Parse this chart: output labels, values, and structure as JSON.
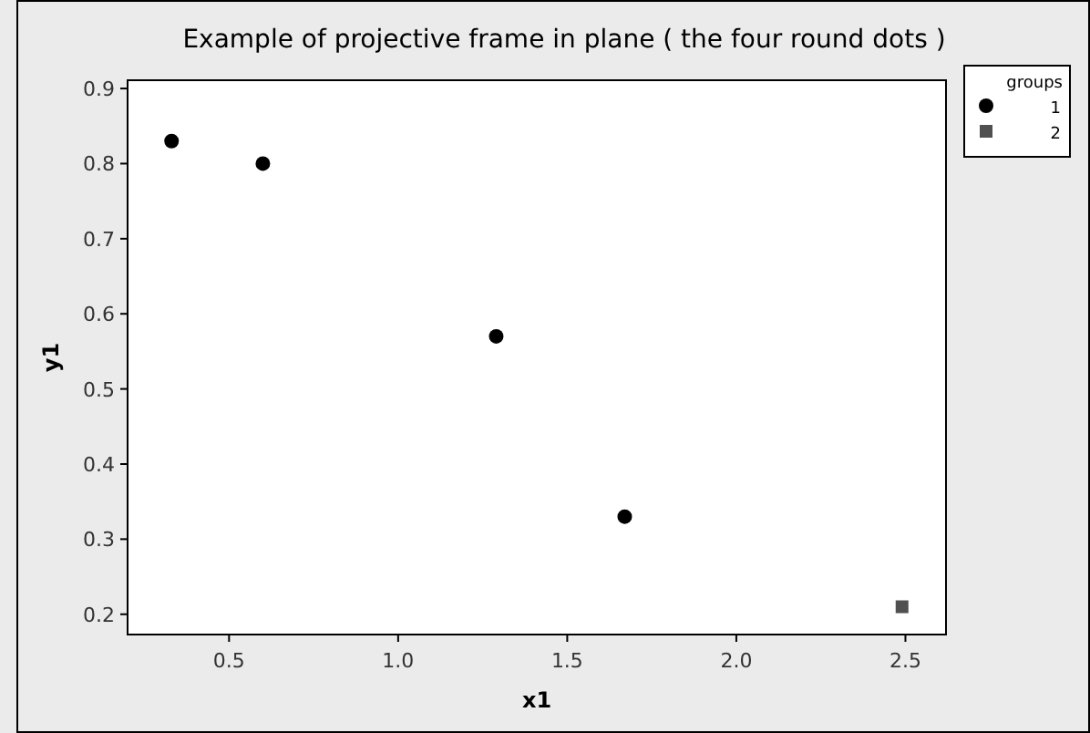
{
  "chart_data": {
    "type": "scatter",
    "title": "Example of projective frame in plane ( the four round dots )",
    "xlabel": "x1",
    "ylabel": "y1",
    "legend_title": "groups",
    "legend": "top right",
    "xlim": [
      0.2,
      2.62
    ],
    "xticks": [
      {
        "value": 0.5,
        "label": "0.5"
      },
      {
        "value": 1,
        "label": "1.0"
      },
      {
        "value": 1.5,
        "label": "1.5"
      },
      {
        "value": 2,
        "label": "2.0"
      },
      {
        "value": 2.5,
        "label": "2.5"
      }
    ],
    "ylim": [
      0.173,
      0.911
    ],
    "yticks": [
      0.2,
      0.3,
      0.4,
      0.5,
      0.6,
      0.7,
      0.8,
      0.9
    ],
    "series": [
      {
        "name": "1",
        "color": "#000000",
        "marker": "circle",
        "x": [
          0.33,
          0.6,
          1.29,
          1.67
        ],
        "values": [
          0.83,
          0.8,
          0.57,
          0.33
        ]
      },
      {
        "name": "2",
        "color": "#505050",
        "marker": "square",
        "x": [
          2.49
        ],
        "values": [
          0.21
        ]
      }
    ]
  }
}
